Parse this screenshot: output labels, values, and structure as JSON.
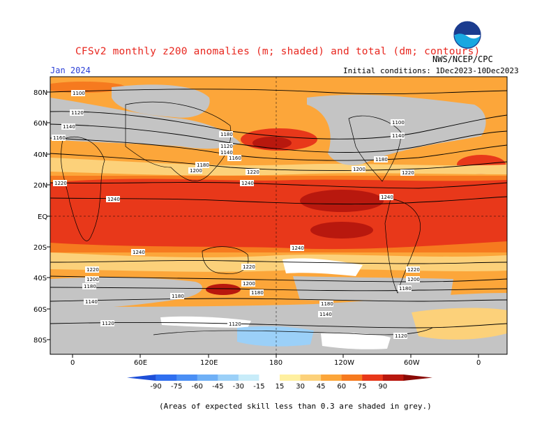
{
  "header": {
    "title": "CFSv2 monthly z200 anomalies (m; shaded) and total (dm; contours)",
    "month": "Jan 2024",
    "org": "NWS/NCEP/CPC",
    "init_conditions": "Initial conditions: 1Dec2023-10Dec2023",
    "logo_text": "NOAA"
  },
  "axes": {
    "lat_labels": [
      "80N",
      "60N",
      "40N",
      "20N",
      "EQ",
      "20S",
      "40S",
      "60S",
      "80S"
    ],
    "lon_labels": [
      "0",
      "60E",
      "120E",
      "180",
      "120W",
      "60W",
      "0"
    ]
  },
  "colorbar": {
    "labels": [
      "-90",
      "-75",
      "-60",
      "-45",
      "-30",
      "-15",
      "15",
      "30",
      "45",
      "60",
      "75",
      "90"
    ],
    "colors": [
      "#1e4fd8",
      "#2f6ff0",
      "#4a8ff5",
      "#6fb0f6",
      "#9bd0f8",
      "#c8ecf9",
      "#ffffff",
      "#fff0a0",
      "#fcd17a",
      "#fca63a",
      "#f67a1f",
      "#e8381a",
      "#b8180e",
      "#8a0a06"
    ]
  },
  "contour_labels": [
    "1100",
    "1120",
    "1140",
    "1160",
    "1180",
    "1200",
    "1220",
    "1240"
  ],
  "footnote": "(Areas of expected skill less than 0.3 are shaded in grey.)",
  "colors": {
    "skill_grey": "#c4c4c4",
    "title_red": "#e8271f",
    "month_blue": "#2b3fd6"
  }
}
